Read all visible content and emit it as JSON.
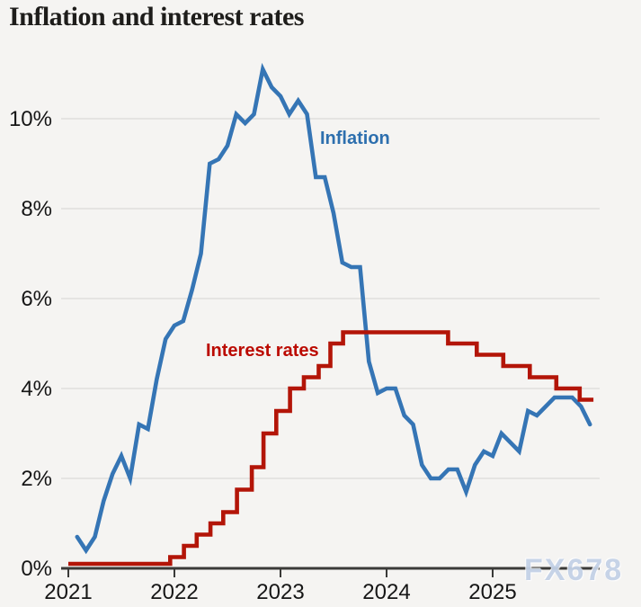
{
  "page": {
    "title": "Inflation and interest rates"
  },
  "watermark": {
    "text": "FX678",
    "color": "#c4d2e7"
  },
  "annotations": {
    "inflation": "Inflation",
    "interest_rates": "Interest rates"
  },
  "palette": {
    "background": "#f5f4f2",
    "title_text": "#1e1d1b",
    "axis_text": "#161616",
    "gridline": "#e0dedc",
    "axis_line": "#3a3a38",
    "inflation_blue": "#3575b5",
    "rates_red": "#b31508",
    "inflation_label_blue": "#2d6fae",
    "rates_label_red": "#bb0a01",
    "watermark_blue": "#c4d2e7"
  },
  "chart_data": {
    "type": "line",
    "title": "Inflation and interest rates",
    "legend_position": "inline-labels",
    "x_axis": {
      "tick_labels": [
        "2021",
        "2022",
        "2023",
        "2024",
        "2025"
      ],
      "tick_values": [
        2021,
        2022,
        2023,
        2024,
        2025
      ],
      "range": [
        2020.93,
        2026.01
      ]
    },
    "y_axis": {
      "tick_labels": [
        "0%",
        "2%",
        "4%",
        "6%",
        "8%",
        "10%"
      ],
      "tick_values": [
        0,
        2,
        4,
        6,
        8,
        10
      ],
      "unit": "%",
      "range": [
        0,
        11.9
      ],
      "grid": true
    },
    "series": [
      {
        "name": "Inflation",
        "type": "line",
        "color": "#3575b5",
        "unit": "% CPI annual rate",
        "start": "2021-01",
        "frequency": "monthly",
        "values": [
          0.7,
          0.4,
          0.7,
          1.5,
          2.1,
          2.5,
          2.0,
          3.2,
          3.1,
          4.2,
          5.1,
          5.4,
          5.5,
          6.2,
          7.0,
          9.0,
          9.1,
          9.4,
          10.1,
          9.9,
          10.1,
          11.1,
          10.7,
          10.5,
          10.1,
          10.4,
          10.1,
          8.7,
          8.7,
          7.9,
          6.8,
          6.7,
          6.7,
          4.6,
          3.9,
          4.0,
          4.0,
          3.4,
          3.2,
          2.3,
          2.0,
          2.0,
          2.2,
          2.2,
          1.7,
          2.3,
          2.6,
          2.5,
          3.0,
          2.8,
          2.6,
          3.5,
          3.4,
          3.6,
          3.8,
          3.8,
          3.8,
          3.6,
          3.2
        ]
      },
      {
        "name": "Interest rates",
        "type": "step",
        "color": "#b31508",
        "unit": "% Bank Rate",
        "changes": [
          {
            "date": "Jan 2021",
            "rate": 0.1,
            "t": 2021.0
          },
          {
            "date": "Dec 2021",
            "rate": 0.25,
            "t": 2021.96
          },
          {
            "date": "Feb 2022",
            "rate": 0.5,
            "t": 2022.09
          },
          {
            "date": "Mar 2022",
            "rate": 0.75,
            "t": 2022.21
          },
          {
            "date": "May 2022",
            "rate": 1.0,
            "t": 2022.34
          },
          {
            "date": "Jun 2022",
            "rate": 1.25,
            "t": 2022.46
          },
          {
            "date": "Aug 2022",
            "rate": 1.75,
            "t": 2022.59
          },
          {
            "date": "Sep 2022",
            "rate": 2.25,
            "t": 2022.73
          },
          {
            "date": "Nov 2022",
            "rate": 3.0,
            "t": 2022.84
          },
          {
            "date": "Dec 2022",
            "rate": 3.5,
            "t": 2022.96
          },
          {
            "date": "Feb 2023",
            "rate": 4.0,
            "t": 2023.09
          },
          {
            "date": "Mar 2023",
            "rate": 4.25,
            "t": 2023.22
          },
          {
            "date": "May 2023",
            "rate": 4.5,
            "t": 2023.36
          },
          {
            "date": "Jun 2023",
            "rate": 5.0,
            "t": 2023.47
          },
          {
            "date": "Aug 2023",
            "rate": 5.25,
            "t": 2023.59
          },
          {
            "date": "Aug 2024",
            "rate": 5.0,
            "t": 2024.58
          },
          {
            "date": "Nov 2024",
            "rate": 4.75,
            "t": 2024.85
          },
          {
            "date": "Feb 2025",
            "rate": 4.5,
            "t": 2025.1
          },
          {
            "date": "May 2025",
            "rate": 4.25,
            "t": 2025.35
          },
          {
            "date": "Aug 2025",
            "rate": 4.0,
            "t": 2025.6
          },
          {
            "date": "Nov 2025",
            "rate": 3.75,
            "t": 2025.82
          }
        ],
        "end_t": 2025.95
      }
    ]
  }
}
